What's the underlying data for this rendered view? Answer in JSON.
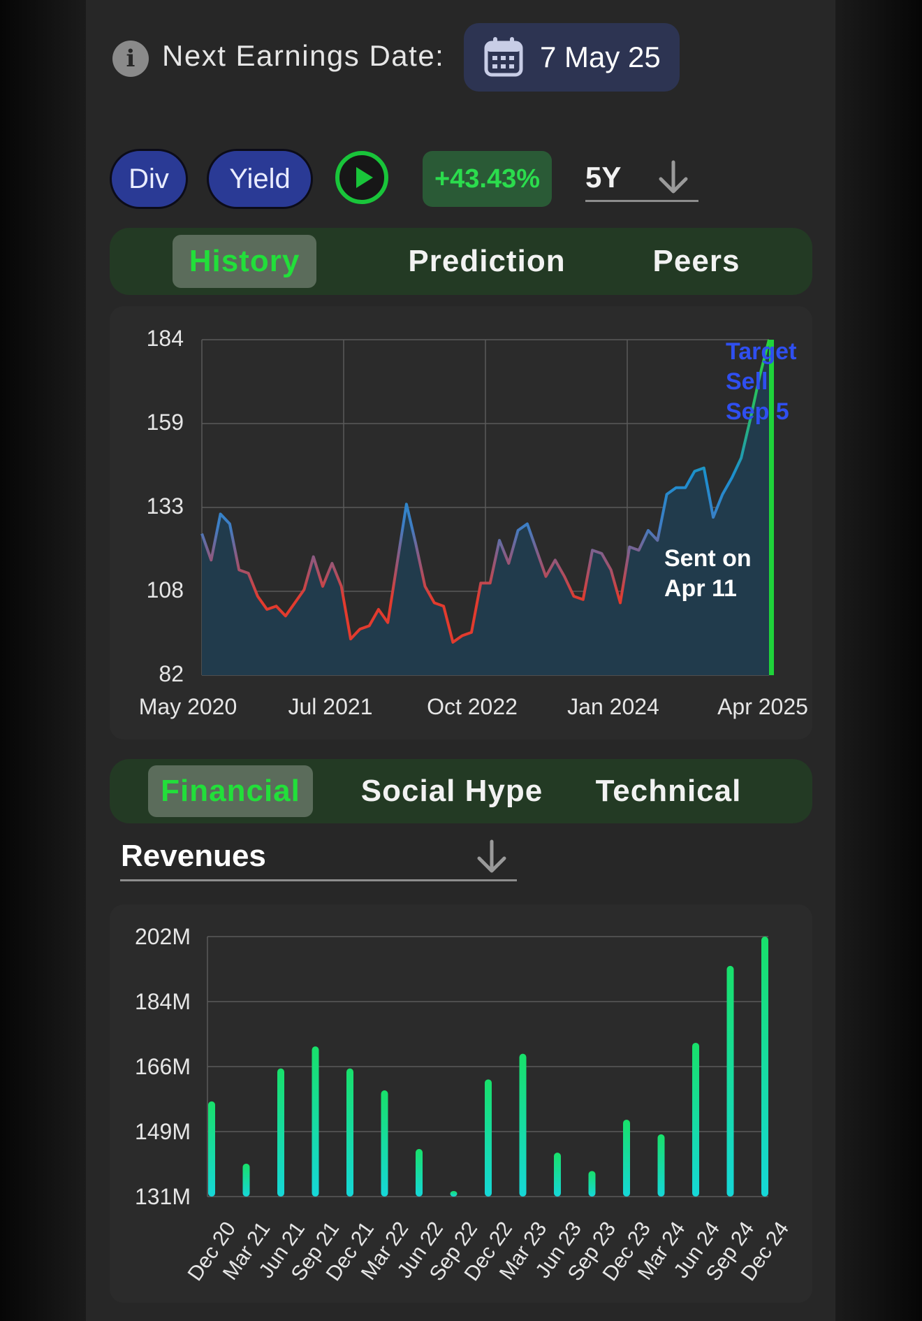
{
  "earnings": {
    "label": "Next Earnings Date:",
    "date": "7 May 25",
    "info_icon": "info-icon",
    "calendar_icon": "calendar-icon"
  },
  "controls": {
    "div_label": "Div",
    "yield_label": "Yield",
    "play_icon": "play-icon",
    "change": "+43.43%",
    "period": "5Y"
  },
  "chart_tabs": [
    {
      "label": "History",
      "active": true
    },
    {
      "label": "Prediction",
      "active": false
    },
    {
      "label": "Peers",
      "active": false
    }
  ],
  "analysis_tabs": [
    {
      "label": "Financial",
      "active": true
    },
    {
      "label": "Social Hype",
      "active": false
    },
    {
      "label": "Technical",
      "active": false
    }
  ],
  "metric_select": {
    "label": "Revenues",
    "icon": "chevron-down-icon"
  },
  "colors": {
    "accent_green": "#22df3a",
    "target_blue": "#2f4ff0",
    "price_rise": "#1f8fcf",
    "price_fall": "#e23b2e",
    "bar_top": "#18e06a",
    "bar_bottom": "#16d7d8"
  },
  "chart_data": [
    {
      "type": "line",
      "series": [
        {
          "values": [
            125,
            117,
            131,
            128,
            114,
            113,
            106,
            102,
            103,
            100,
            104,
            108,
            118,
            109,
            116,
            109,
            93,
            96,
            97,
            102,
            98,
            116,
            134,
            122,
            109,
            104,
            103,
            92,
            94,
            95,
            110,
            110,
            123,
            116,
            126,
            128,
            120,
            112,
            117,
            112,
            106,
            105,
            120,
            119,
            114,
            104,
            121,
            120,
            126,
            123,
            137,
            139,
            139,
            144,
            145,
            130,
            137,
            142,
            148,
            160,
            173,
            184
          ]
        }
      ],
      "x_ticks": [
        "May 2020",
        "Jul 2021",
        "Oct 2022",
        "Jan 2024",
        "Apr 2025"
      ],
      "y_ticks": [
        "184",
        "159",
        "133",
        "108",
        "82"
      ],
      "ylim": [
        82,
        184
      ],
      "grid": true,
      "area_fill": true,
      "annotations": [
        {
          "text_lines": [
            "Sent on",
            "Apr 11"
          ]
        },
        {
          "text_lines": [
            "Target",
            "Sell",
            "Sep 5"
          ]
        }
      ]
    },
    {
      "type": "bar",
      "categories": [
        "Dec 20",
        "Mar 21",
        "Jun 21",
        "Sep 21",
        "Dec 21",
        "Mar 22",
        "Jun 22",
        "Sep 22",
        "Dec 22",
        "Mar 23",
        "Jun 23",
        "Sep 23",
        "Dec 23",
        "Mar 24",
        "Jun 24",
        "Sep 24",
        "Dec 24"
      ],
      "values": [
        157,
        140,
        166,
        172,
        166,
        160,
        144,
        132,
        163,
        170,
        143,
        138,
        152,
        148,
        173,
        194,
        202
      ],
      "y_ticks": [
        "202M",
        "184M",
        "166M",
        "149M",
        "131M"
      ],
      "ylim": [
        131,
        202
      ],
      "grid": true
    }
  ]
}
